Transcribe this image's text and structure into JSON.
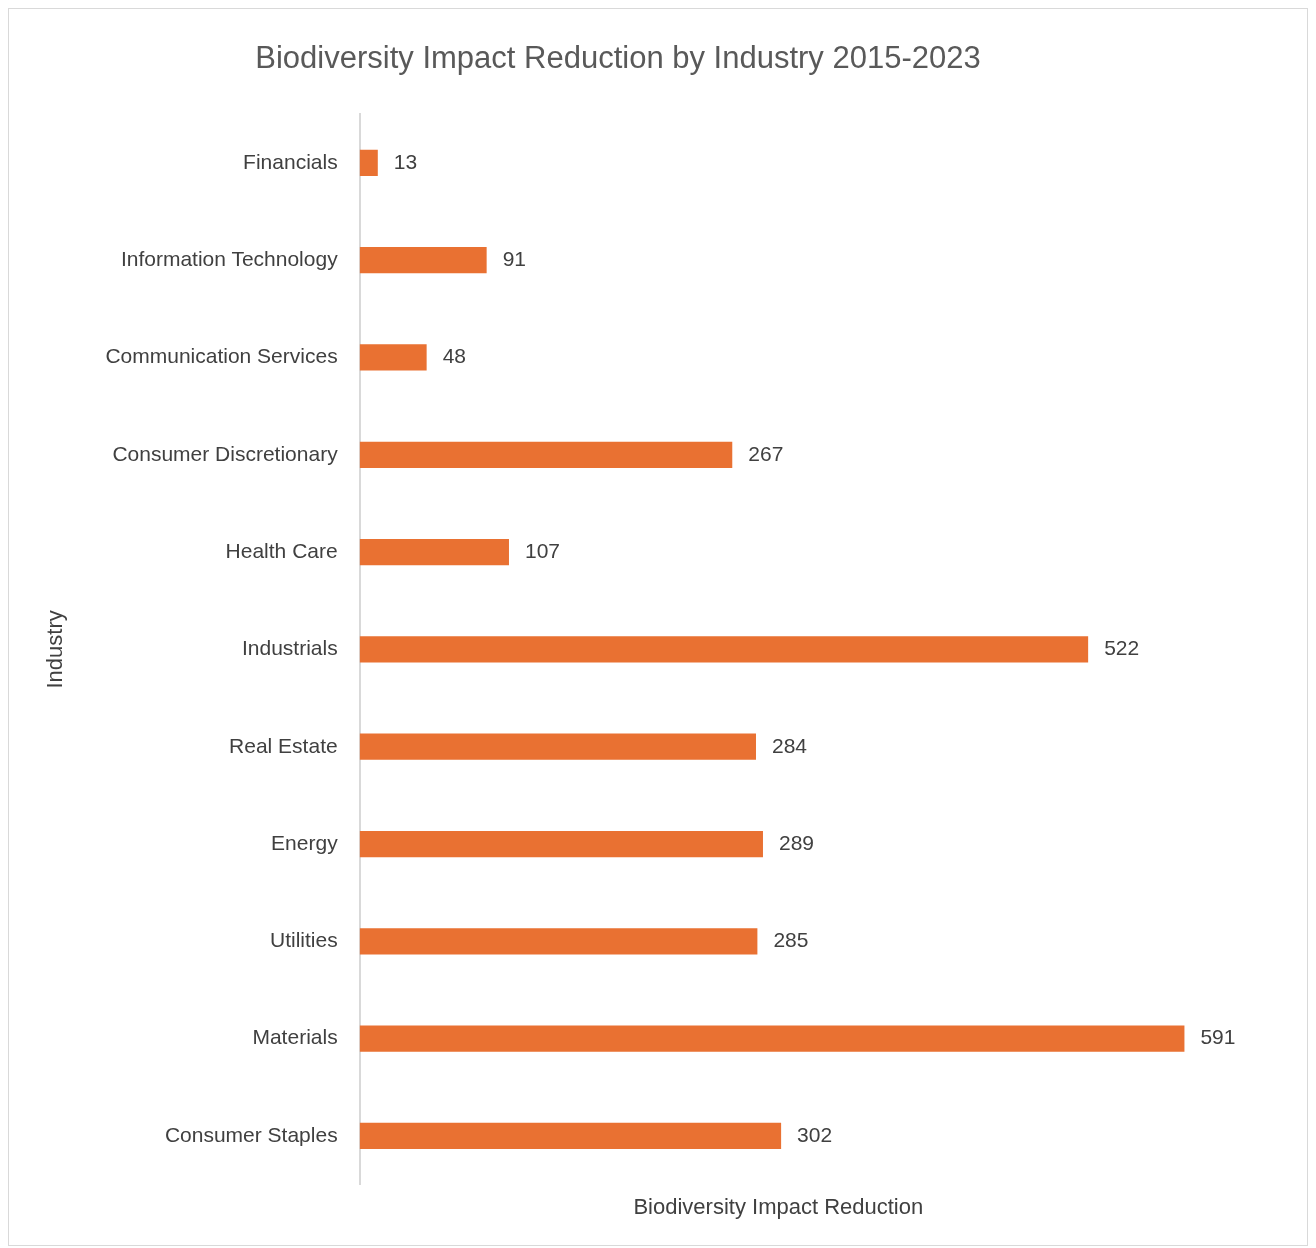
{
  "chart_data": {
    "type": "bar",
    "orientation": "horizontal",
    "title": "Biodiversity Impact Reduction by Industry 2015-2023",
    "xlabel": "Biodiversity Impact Reduction",
    "ylabel": "Industry",
    "categories": [
      "Financials",
      "Information Technology",
      "Communication Services",
      "Consumer Discretionary",
      "Health Care",
      "Industrials",
      "Real Estate",
      "Energy",
      "Utilities",
      "Materials",
      "Consumer Staples"
    ],
    "values": [
      13,
      91,
      48,
      267,
      107,
      522,
      284,
      289,
      285,
      591,
      302
    ],
    "color": "#e97132",
    "data_labels": true,
    "grid": false,
    "legend": false,
    "tick_labels": "y"
  }
}
